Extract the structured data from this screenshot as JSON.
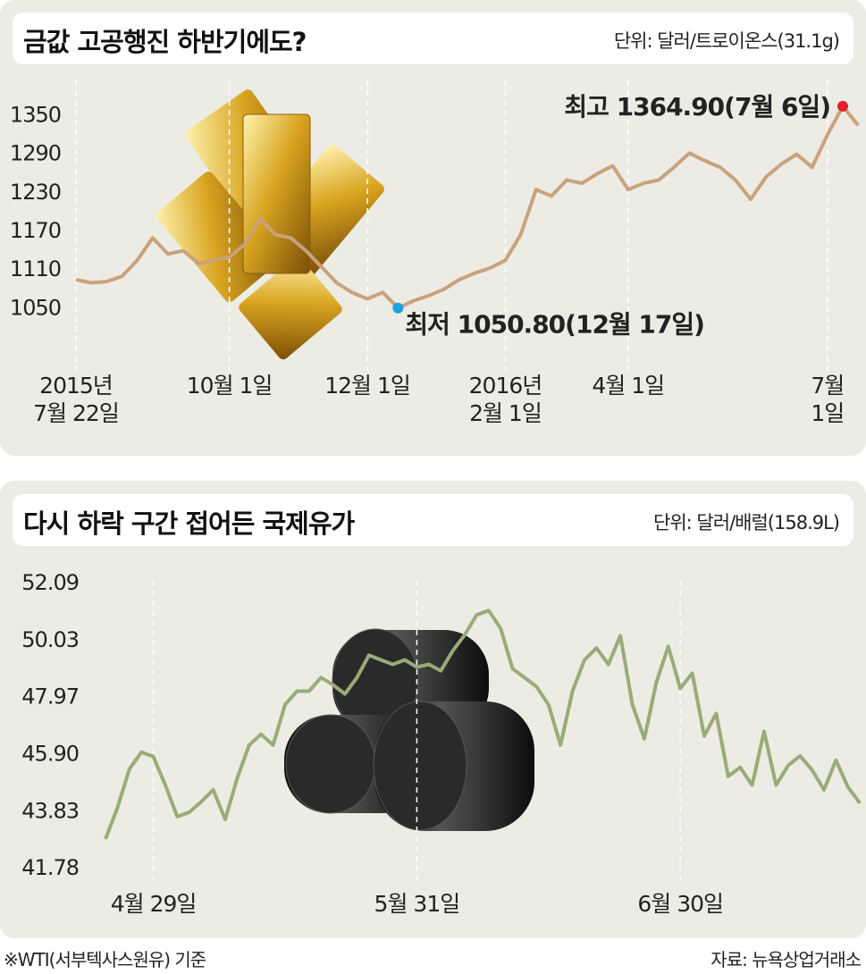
{
  "chart_data": [
    {
      "type": "line",
      "title": "금값 고공행진 하반기에도?",
      "subtitle": "단위: 달러/트로이온스(31.1g)",
      "color": "#c9a27c",
      "categories": [
        "2015년\n7월  22일",
        null,
        null,
        null,
        null,
        null,
        null,
        null,
        null,
        null,
        "10월  1일",
        null,
        null,
        null,
        null,
        null,
        null,
        null,
        null,
        "12월  1일",
        null,
        null,
        null,
        null,
        null,
        null,
        null,
        null,
        "2016년\n2월  1일",
        null,
        null,
        null,
        null,
        null,
        null,
        null,
        "4월  1일",
        null,
        null,
        null,
        null,
        null,
        null,
        null,
        null,
        null,
        null,
        null,
        null,
        "7월  1일",
        null,
        null
      ],
      "values": [
        1095,
        1090,
        1092,
        1100,
        1125,
        1160,
        1135,
        1140,
        1120,
        1125,
        1130,
        1150,
        1190,
        1165,
        1160,
        1140,
        1115,
        1090,
        1075,
        1065,
        1075,
        1050.8,
        1062,
        1070,
        1080,
        1095,
        1105,
        1113,
        1125,
        1165,
        1235,
        1225,
        1250,
        1245,
        1260,
        1272,
        1235,
        1245,
        1250,
        1270,
        1292,
        1280,
        1270,
        1250,
        1220,
        1255,
        1275,
        1290,
        1270,
        1320,
        1364.9,
        1335
      ],
      "ylim": [
        960,
        1405
      ],
      "yticks": [
        1050,
        1110,
        1170,
        1230,
        1290,
        1350
      ],
      "annotations": [
        {
          "text": "최고  1364.90(7월  6일)",
          "color": "#e8202a"
        },
        {
          "text": "최저  1050.80(12월  17일)",
          "color": "#1ea2e0"
        }
      ]
    },
    {
      "type": "line",
      "title": "다시 하락 구간 접어든 국제유가",
      "subtitle": "단위: 달러/배럴(158.9L)",
      "color": "#9aab78",
      "categories": [
        null,
        null,
        null,
        null,
        "4월  29일",
        null,
        null,
        null,
        null,
        null,
        null,
        null,
        null,
        null,
        null,
        null,
        null,
        null,
        null,
        null,
        null,
        null,
        null,
        null,
        null,
        null,
        "5월  31일",
        null,
        null,
        null,
        null,
        null,
        null,
        null,
        null,
        null,
        null,
        null,
        null,
        null,
        null,
        null,
        null,
        null,
        null,
        null,
        null,
        null,
        "6월  30일",
        null,
        null,
        null,
        null,
        null,
        null,
        null,
        null,
        null,
        null,
        null,
        null,
        null,
        null,
        null
      ],
      "values": [
        42.85,
        43.98,
        45.38,
        45.99,
        45.83,
        44.8,
        43.66,
        43.82,
        44.2,
        44.63,
        43.56,
        45.05,
        46.25,
        46.64,
        46.25,
        47.71,
        48.2,
        48.2,
        48.69,
        48.43,
        48.1,
        48.69,
        49.5,
        49.33,
        49.17,
        49.33,
        49.07,
        49.17,
        48.94,
        49.66,
        50.24,
        50.96,
        51.12,
        50.47,
        49.01,
        48.69,
        48.36,
        47.71,
        46.25,
        48.2,
        49.33,
        49.76,
        49.17,
        50.21,
        47.71,
        46.48,
        48.52,
        49.82,
        48.3,
        48.85,
        46.58,
        47.39,
        45.12,
        45.44,
        44.8,
        46.74,
        44.8,
        45.51,
        45.86,
        45.35,
        44.63,
        45.7,
        44.73,
        44.15
      ],
      "ylim": [
        41.2,
        53.0
      ],
      "yticks": [
        41.78,
        43.83,
        {
          "value": 45.9,
          "label": "45.90"
        },
        47.97,
        50.03,
        52.09
      ]
    }
  ],
  "notes": {
    "left": "※WTI(서부텍사스원유) 기준",
    "right": "자료: 뉴욕상업거래소"
  }
}
